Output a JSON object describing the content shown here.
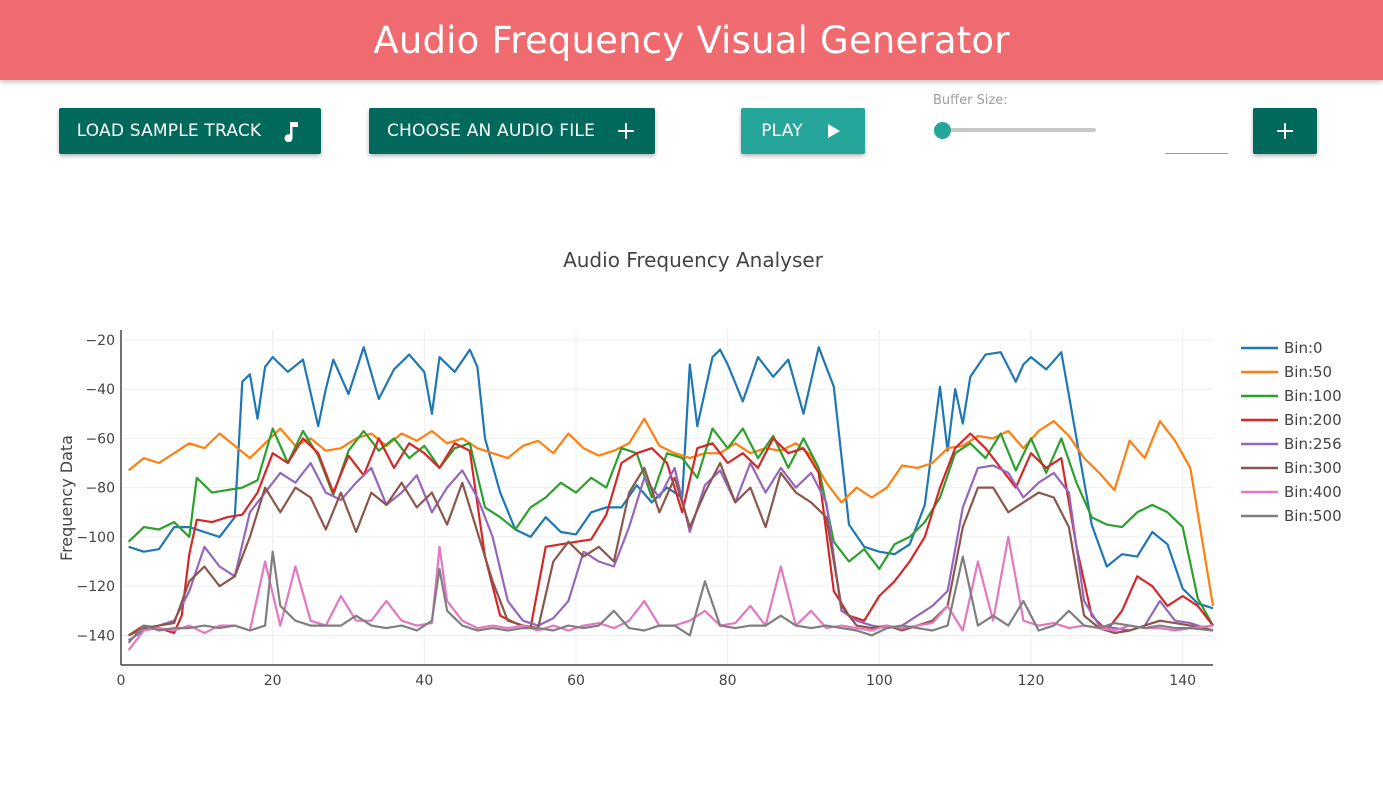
{
  "header": {
    "title": "Audio Frequency Visual Generator"
  },
  "toolbar": {
    "load_label": "LOAD SAMPLE TRACK",
    "choose_label": "CHOOSE AN AUDIO FILE",
    "play_label": "PLAY",
    "add_label": "+",
    "buffer_label": "Buffer Size:",
    "buffer_value": ""
  },
  "colors": {
    "header_bg": "#f06b70",
    "primary_button": "#00695c",
    "play_button": "#26a69a",
    "slider_thumb": "#26a69a"
  },
  "icons": {
    "load": "music-note-icon",
    "choose": "plus-icon",
    "play": "play-icon",
    "add": "plus-icon"
  },
  "chart_data": {
    "type": "line",
    "title": "Audio Frequency Analyser",
    "xlabel": "",
    "ylabel": "Frequency Data",
    "xlim": [
      0,
      144
    ],
    "ylim": [
      -152,
      -16
    ],
    "xticks": [
      0,
      20,
      40,
      60,
      80,
      100,
      120,
      140
    ],
    "yticks": [
      -20,
      -40,
      -60,
      -80,
      -100,
      -120,
      -140
    ],
    "grid": true,
    "legend_position": "right",
    "series": [
      {
        "name": "Bin:0",
        "color": "#1f77b4",
        "x": [
          1,
          3,
          5,
          7,
          9,
          11,
          13,
          15,
          16,
          17,
          18,
          19,
          20,
          22,
          24,
          26,
          27,
          28,
          30,
          32,
          34,
          36,
          38,
          40,
          41,
          42,
          44,
          46,
          47,
          48,
          50,
          52,
          54,
          56,
          58,
          60,
          62,
          64,
          66,
          68,
          70,
          72,
          74,
          75,
          76,
          78,
          79,
          80,
          82,
          84,
          86,
          88,
          90,
          92,
          94,
          96,
          98,
          100,
          102,
          104,
          106,
          108,
          109,
          110,
          111,
          112,
          114,
          116,
          118,
          119,
          120,
          122,
          124,
          126,
          128,
          130,
          132,
          134,
          136,
          138,
          140,
          142,
          144
        ],
        "y": [
          -104,
          -106,
          -105,
          -96,
          -96,
          -98,
          -100,
          -92,
          -37,
          -34,
          -52,
          -31,
          -27,
          -33,
          -28,
          -55,
          -40,
          -28,
          -42,
          -23,
          -44,
          -32,
          -26,
          -33,
          -50,
          -27,
          -33,
          -24,
          -31,
          -60,
          -82,
          -97,
          -100,
          -92,
          -98,
          -99,
          -90,
          -88,
          -88,
          -79,
          -86,
          -80,
          -84,
          -30,
          -55,
          -27,
          -24,
          -30,
          -45,
          -27,
          -35,
          -28,
          -50,
          -23,
          -39,
          -95,
          -104,
          -106,
          -107,
          -103,
          -87,
          -39,
          -65,
          -40,
          -54,
          -35,
          -26,
          -25,
          -37,
          -30,
          -27,
          -32,
          -25,
          -60,
          -95,
          -112,
          -107,
          -108,
          -98,
          -103,
          -121,
          -127,
          -129
        ]
      },
      {
        "name": "Bin:50",
        "color": "#ff7f0e",
        "x": [
          1,
          3,
          5,
          7,
          9,
          11,
          13,
          15,
          17,
          19,
          21,
          23,
          25,
          27,
          29,
          31,
          33,
          35,
          37,
          39,
          41,
          43,
          45,
          47,
          49,
          51,
          53,
          55,
          57,
          59,
          61,
          63,
          65,
          67,
          69,
          71,
          73,
          75,
          77,
          79,
          81,
          83,
          85,
          87,
          89,
          91,
          93,
          95,
          97,
          99,
          101,
          103,
          105,
          107,
          109,
          111,
          113,
          115,
          117,
          119,
          121,
          123,
          125,
          127,
          129,
          131,
          133,
          135,
          137,
          139,
          141,
          144
        ],
        "y": [
          -73,
          -68,
          -70,
          -66,
          -62,
          -64,
          -58,
          -63,
          -68,
          -62,
          -56,
          -63,
          -60,
          -65,
          -64,
          -60,
          -58,
          -63,
          -58,
          -61,
          -57,
          -62,
          -60,
          -64,
          -66,
          -68,
          -63,
          -61,
          -66,
          -58,
          -64,
          -67,
          -65,
          -62,
          -52,
          -63,
          -66,
          -68,
          -66,
          -66,
          -62,
          -66,
          -64,
          -65,
          -62,
          -67,
          -78,
          -86,
          -80,
          -84,
          -80,
          -71,
          -72,
          -70,
          -64,
          -63,
          -59,
          -60,
          -57,
          -64,
          -57,
          -53,
          -59,
          -68,
          -74,
          -81,
          -61,
          -68,
          -53,
          -61,
          -72,
          -128
        ]
      },
      {
        "name": "Bin:100",
        "color": "#2ca02c",
        "x": [
          1,
          3,
          5,
          7,
          9,
          10,
          12,
          14,
          16,
          18,
          20,
          22,
          24,
          26,
          28,
          30,
          32,
          34,
          36,
          38,
          40,
          42,
          44,
          46,
          48,
          50,
          52,
          54,
          56,
          58,
          60,
          62,
          64,
          66,
          68,
          70,
          72,
          74,
          76,
          78,
          80,
          82,
          84,
          86,
          88,
          90,
          92,
          94,
          96,
          98,
          100,
          102,
          104,
          106,
          108,
          110,
          112,
          114,
          116,
          118,
          120,
          122,
          124,
          126,
          128,
          130,
          132,
          134,
          136,
          138,
          140,
          142,
          144
        ],
        "y": [
          -102,
          -96,
          -97,
          -94,
          -100,
          -76,
          -82,
          -81,
          -80,
          -77,
          -56,
          -70,
          -57,
          -67,
          -83,
          -65,
          -57,
          -65,
          -60,
          -68,
          -63,
          -72,
          -64,
          -62,
          -88,
          -92,
          -97,
          -88,
          -84,
          -78,
          -82,
          -76,
          -80,
          -64,
          -66,
          -84,
          -66,
          -68,
          -76,
          -56,
          -64,
          -56,
          -68,
          -59,
          -72,
          -60,
          -72,
          -102,
          -110,
          -105,
          -113,
          -103,
          -100,
          -94,
          -84,
          -66,
          -62,
          -68,
          -58,
          -73,
          -60,
          -74,
          -60,
          -78,
          -92,
          -95,
          -96,
          -90,
          -87,
          -90,
          -96,
          -125,
          -136
        ]
      },
      {
        "name": "Bin:200",
        "color": "#d62728",
        "x": [
          1,
          3,
          5,
          7,
          8,
          9,
          10,
          12,
          14,
          16,
          18,
          20,
          22,
          24,
          26,
          28,
          30,
          32,
          34,
          36,
          38,
          40,
          42,
          44,
          46,
          48,
          50,
          52,
          54,
          56,
          58,
          60,
          62,
          64,
          66,
          68,
          70,
          72,
          74,
          76,
          78,
          80,
          82,
          84,
          86,
          88,
          90,
          92,
          94,
          96,
          98,
          100,
          102,
          104,
          106,
          108,
          110,
          112,
          114,
          116,
          118,
          120,
          122,
          124,
          126,
          128,
          130,
          132,
          134,
          136,
          138,
          140,
          142,
          144
        ],
        "y": [
          -140,
          -136,
          -137,
          -139,
          -132,
          -107,
          -93,
          -94,
          -92,
          -91,
          -82,
          -66,
          -70,
          -60,
          -66,
          -82,
          -67,
          -75,
          -60,
          -72,
          -62,
          -66,
          -72,
          -62,
          -65,
          -108,
          -132,
          -135,
          -137,
          -104,
          -103,
          -102,
          -101,
          -91,
          -70,
          -66,
          -64,
          -70,
          -90,
          -64,
          -62,
          -70,
          -66,
          -72,
          -60,
          -66,
          -64,
          -74,
          -122,
          -132,
          -134,
          -124,
          -118,
          -110,
          -100,
          -80,
          -64,
          -58,
          -64,
          -72,
          -80,
          -66,
          -72,
          -68,
          -104,
          -132,
          -138,
          -130,
          -116,
          -120,
          -128,
          -124,
          -128,
          -136
        ]
      },
      {
        "name": "Bin:256",
        "color": "#9467bd",
        "x": [
          1,
          3,
          5,
          7,
          9,
          11,
          13,
          15,
          17,
          19,
          21,
          23,
          25,
          27,
          29,
          31,
          33,
          35,
          37,
          39,
          41,
          43,
          45,
          47,
          49,
          51,
          53,
          55,
          57,
          59,
          61,
          63,
          65,
          67,
          69,
          71,
          73,
          75,
          77,
          79,
          81,
          83,
          85,
          87,
          89,
          91,
          93,
          95,
          97,
          99,
          101,
          103,
          105,
          107,
          109,
          111,
          113,
          115,
          117,
          119,
          121,
          123,
          125,
          127,
          129,
          131,
          133,
          135,
          137,
          139,
          141,
          144
        ],
        "y": [
          -142,
          -138,
          -136,
          -134,
          -122,
          -104,
          -112,
          -116,
          -90,
          -82,
          -74,
          -78,
          -70,
          -82,
          -85,
          -78,
          -72,
          -87,
          -82,
          -75,
          -90,
          -80,
          -73,
          -84,
          -100,
          -126,
          -134,
          -136,
          -133,
          -126,
          -106,
          -110,
          -112,
          -96,
          -76,
          -84,
          -72,
          -98,
          -79,
          -73,
          -86,
          -70,
          -82,
          -72,
          -80,
          -74,
          -86,
          -130,
          -134,
          -136,
          -137,
          -136,
          -132,
          -128,
          -122,
          -88,
          -72,
          -71,
          -74,
          -84,
          -78,
          -74,
          -82,
          -126,
          -136,
          -137,
          -138,
          -136,
          -126,
          -134,
          -135,
          -138
        ]
      },
      {
        "name": "Bin:300",
        "color": "#8c564b",
        "x": [
          1,
          3,
          5,
          7,
          9,
          11,
          13,
          15,
          17,
          19,
          21,
          23,
          25,
          27,
          29,
          31,
          33,
          35,
          37,
          39,
          41,
          43,
          45,
          47,
          49,
          51,
          53,
          55,
          57,
          59,
          61,
          63,
          65,
          67,
          69,
          71,
          73,
          75,
          77,
          79,
          81,
          83,
          85,
          87,
          89,
          91,
          93,
          95,
          97,
          99,
          101,
          103,
          105,
          107,
          109,
          111,
          113,
          115,
          117,
          119,
          121,
          123,
          125,
          127,
          129,
          131,
          133,
          135,
          137,
          139,
          141,
          144
        ],
        "y": [
          -140,
          -137,
          -136,
          -135,
          -118,
          -112,
          -120,
          -116,
          -100,
          -80,
          -90,
          -80,
          -84,
          -97,
          -82,
          -98,
          -82,
          -87,
          -78,
          -88,
          -82,
          -95,
          -78,
          -98,
          -118,
          -134,
          -136,
          -137,
          -110,
          -102,
          -108,
          -104,
          -110,
          -82,
          -72,
          -90,
          -76,
          -96,
          -82,
          -70,
          -86,
          -80,
          -96,
          -74,
          -82,
          -86,
          -92,
          -128,
          -136,
          -137,
          -136,
          -138,
          -136,
          -134,
          -128,
          -96,
          -80,
          -80,
          -90,
          -86,
          -82,
          -84,
          -96,
          -132,
          -137,
          -139,
          -138,
          -136,
          -134,
          -135,
          -136,
          -138
        ]
      },
      {
        "name": "Bin:400",
        "color": "#e377c2",
        "x": [
          1,
          3,
          5,
          7,
          9,
          11,
          13,
          15,
          17,
          19,
          21,
          23,
          25,
          27,
          29,
          31,
          33,
          35,
          37,
          39,
          41,
          42,
          43,
          45,
          47,
          49,
          51,
          53,
          55,
          57,
          59,
          61,
          63,
          65,
          67,
          69,
          71,
          73,
          75,
          77,
          79,
          81,
          83,
          85,
          87,
          89,
          91,
          93,
          95,
          97,
          99,
          101,
          103,
          105,
          107,
          109,
          111,
          113,
          115,
          117,
          119,
          121,
          123,
          125,
          127,
          129,
          131,
          133,
          135,
          137,
          139,
          141,
          144
        ],
        "y": [
          -146,
          -138,
          -137,
          -138,
          -136,
          -139,
          -136,
          -136,
          -138,
          -110,
          -136,
          -112,
          -134,
          -136,
          -124,
          -134,
          -134,
          -126,
          -134,
          -136,
          -135,
          -104,
          -126,
          -134,
          -137,
          -136,
          -137,
          -136,
          -138,
          -136,
          -138,
          -136,
          -135,
          -137,
          -134,
          -126,
          -136,
          -136,
          -134,
          -130,
          -136,
          -135,
          -128,
          -136,
          -112,
          -136,
          -130,
          -137,
          -136,
          -137,
          -138,
          -136,
          -137,
          -136,
          -135,
          -128,
          -138,
          -110,
          -134,
          -100,
          -134,
          -136,
          -135,
          -137,
          -136,
          -137,
          -138,
          -136,
          -137,
          -137,
          -138,
          -137,
          -136
        ]
      },
      {
        "name": "Bin:500",
        "color": "#7f7f7f",
        "x": [
          1,
          3,
          5,
          7,
          9,
          11,
          13,
          15,
          17,
          19,
          20,
          21,
          23,
          25,
          27,
          29,
          31,
          33,
          35,
          37,
          39,
          41,
          42,
          43,
          45,
          47,
          49,
          51,
          53,
          55,
          57,
          59,
          61,
          63,
          65,
          67,
          69,
          71,
          73,
          75,
          77,
          79,
          81,
          83,
          85,
          87,
          89,
          91,
          93,
          95,
          97,
          99,
          101,
          103,
          105,
          107,
          109,
          111,
          113,
          115,
          117,
          119,
          121,
          123,
          125,
          127,
          129,
          131,
          133,
          135,
          137,
          139,
          141,
          144
        ],
        "y": [
          -143,
          -136,
          -138,
          -137,
          -137,
          -136,
          -137,
          -136,
          -138,
          -136,
          -106,
          -128,
          -134,
          -136,
          -136,
          -136,
          -132,
          -136,
          -137,
          -136,
          -138,
          -134,
          -113,
          -130,
          -136,
          -138,
          -137,
          -138,
          -137,
          -137,
          -138,
          -136,
          -137,
          -136,
          -130,
          -137,
          -138,
          -136,
          -136,
          -140,
          -118,
          -136,
          -137,
          -136,
          -136,
          -132,
          -136,
          -137,
          -136,
          -137,
          -138,
          -140,
          -137,
          -136,
          -137,
          -138,
          -136,
          -108,
          -136,
          -132,
          -136,
          -126,
          -138,
          -136,
          -130,
          -136,
          -137,
          -135,
          -136,
          -137,
          -136,
          -137,
          -137,
          -138
        ]
      }
    ]
  }
}
